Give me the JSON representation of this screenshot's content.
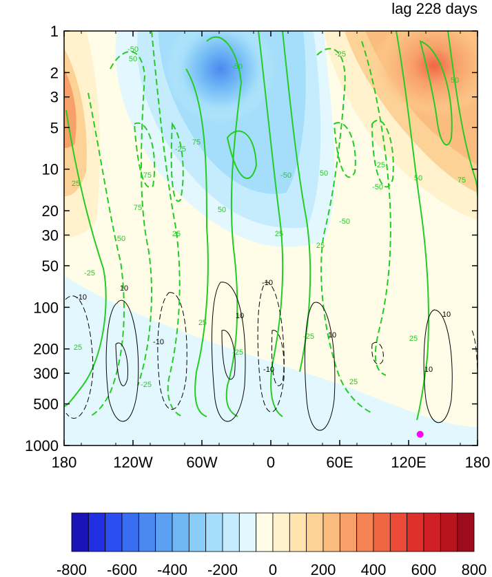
{
  "title": "lag 228 days",
  "chart_data": {
    "type": "heatmap",
    "title": "lag 228 days",
    "xlabel": "",
    "ylabel": "",
    "x_axis": {
      "range": [
        -180,
        180
      ],
      "ticks": [
        -180,
        -120,
        -60,
        0,
        60,
        120,
        180
      ],
      "tick_labels": [
        "180",
        "120W",
        "60W",
        "0",
        "60E",
        "120E",
        "180"
      ]
    },
    "y_axis": {
      "scale": "log",
      "reversed": true,
      "range": [
        1,
        1000
      ],
      "ticks": [
        1,
        2,
        3,
        5,
        10,
        20,
        30,
        50,
        100,
        200,
        300,
        500,
        1000
      ],
      "tick_labels": [
        "1",
        "2",
        "3",
        "5",
        "10",
        "20",
        "30",
        "50",
        "100",
        "200",
        "300",
        "500",
        "1000"
      ]
    },
    "colorbar": {
      "levels": [
        -800,
        -750,
        -700,
        -650,
        -600,
        -550,
        -500,
        -450,
        -400,
        -350,
        -300,
        -250,
        -200,
        -150,
        -100,
        -50,
        0,
        50,
        100,
        150,
        200,
        250,
        300,
        350,
        400,
        450,
        500,
        550,
        600,
        650,
        700,
        750,
        800
      ],
      "tick_labels": [
        "-800",
        "-600",
        "-400",
        "-200",
        "0",
        "200",
        "400",
        "600",
        "800"
      ],
      "colors": [
        "#1a14b8",
        "#2030e0",
        "#2a4ef0",
        "#3a6ef2",
        "#4b88f0",
        "#5ca0f2",
        "#70b8f5",
        "#88ccf7",
        "#a4defa",
        "#c4ecfc",
        "#e2f8fe",
        "#fffde8",
        "#fff2cc",
        "#ffe4b0",
        "#fdd296",
        "#fbbc80",
        "#f7a06a",
        "#f48456",
        "#f06644",
        "#eb4a36",
        "#e0302c",
        "#d01f26",
        "#b81420",
        "#9c0c1c"
      ]
    },
    "shaded_field": [
      {
        "name": "negative anomaly",
        "lon": -35,
        "p": 3,
        "value": -450
      },
      {
        "name": "positive anomaly",
        "lon": 135,
        "p": 2,
        "value": 500
      },
      {
        "name": "positive anomaly",
        "lon": -175,
        "p": 3,
        "value": 350
      }
    ],
    "green_contours": {
      "labels": [
        "50",
        "-50",
        "25",
        "-25",
        "75",
        "-75",
        "50",
        "25",
        "-25",
        "25",
        "-50",
        "75",
        "50",
        "-25",
        "25",
        "-50",
        "50",
        "25",
        "-25",
        "25",
        "-25",
        "-50",
        "25",
        "50",
        "75",
        "50",
        "-50",
        "25",
        "-25",
        "25"
      ]
    },
    "black_contours": {
      "labels": [
        "-10",
        "10",
        "-10",
        "10",
        "-10",
        "10",
        "-10",
        "10",
        "10"
      ]
    },
    "marker": {
      "lon": 130,
      "p": 830,
      "color": "#ff00ff"
    }
  }
}
